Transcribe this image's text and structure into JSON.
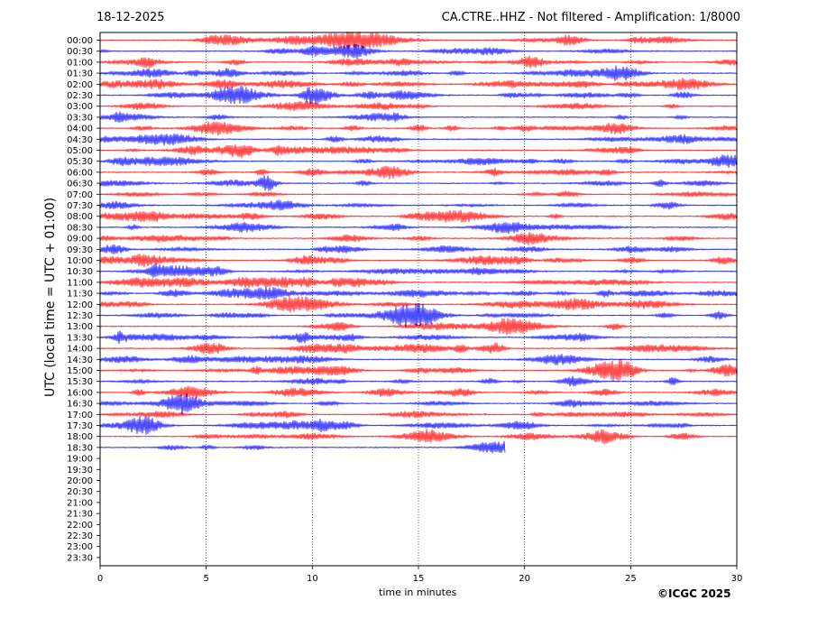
{
  "header": {
    "date": "18-12-2025",
    "station_info": "CA.CTRE..HHZ - Not filtered - Amplification: 1/8000"
  },
  "footer": {
    "copyright": "©ICGC 2025"
  },
  "chart_data": {
    "type": "line",
    "xlabel": "time in minutes",
    "ylabel": "UTC (local time = UTC + 01:00)",
    "xlim": [
      0,
      30
    ],
    "xticks": [
      0,
      5,
      10,
      15,
      20,
      25,
      30
    ],
    "xtick_labels": [
      "0",
      "5",
      "10",
      "15",
      "20",
      "25",
      "30"
    ],
    "vertical_gridlines": [
      5,
      10,
      15,
      20,
      25
    ],
    "row_labels": [
      "00:00",
      "00:30",
      "01:00",
      "01:30",
      "02:00",
      "02:30",
      "03:00",
      "03:30",
      "04:00",
      "04:30",
      "05:00",
      "05:30",
      "06:00",
      "06:30",
      "07:00",
      "07:30",
      "08:00",
      "08:30",
      "09:00",
      "09:30",
      "10:00",
      "10:30",
      "11:00",
      "11:30",
      "12:00",
      "12:30",
      "13:00",
      "13:30",
      "14:00",
      "14:30",
      "15:00",
      "15:30",
      "16:00",
      "16:30",
      "17:00",
      "17:30",
      "18:00",
      "18:30",
      "19:00",
      "19:30",
      "20:00",
      "20:30",
      "21:00",
      "21:30",
      "22:00",
      "22:30",
      "23:00",
      "23:30"
    ],
    "trace_colors": [
      "#ff0000",
      "#0000ff"
    ],
    "traces_recorded": 38,
    "last_trace_end_minute": 19.1
  }
}
